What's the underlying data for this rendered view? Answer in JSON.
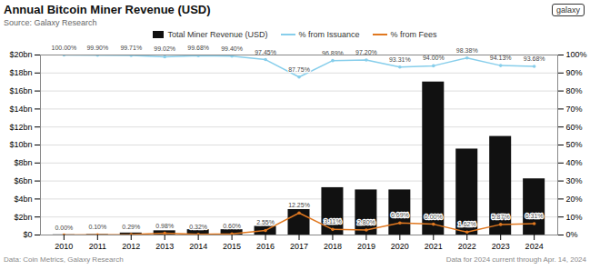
{
  "chart_data": {
    "type": "bar",
    "title": "Annual Bitcoin Miner Revenue (USD)",
    "subtitle": "Source: Galaxy Research",
    "annotations": [
      "Data: Coin Metrics, Galaxy Research",
      "Data for 2024 current through Apr. 14, 2024",
      "galaxy"
    ],
    "x": [
      2010,
      2011,
      2012,
      2013,
      2014,
      2015,
      2016,
      2017,
      2018,
      2019,
      2020,
      2021,
      2022,
      2023,
      2024
    ],
    "xlim": [
      2009.3,
      2024.7
    ],
    "xticks": [
      2010,
      2011,
      2012,
      2013,
      2014,
      2015,
      2016,
      2017,
      2018,
      2019,
      2020,
      2021,
      2022,
      2023,
      2024
    ],
    "ylim": [
      0,
      20000000000
    ],
    "yticks": [
      {
        "value": 0,
        "label": "$0"
      },
      {
        "value": 2000000000,
        "label": "$2bn"
      },
      {
        "value": 4000000000,
        "label": "$4bn"
      },
      {
        "value": 6000000000,
        "label": "$6bn"
      },
      {
        "value": 8000000000,
        "label": "$8bn"
      },
      {
        "value": 10000000000,
        "label": "$10bn"
      },
      {
        "value": 12000000000,
        "label": "$12bn"
      },
      {
        "value": 14000000000,
        "label": "$14bn"
      },
      {
        "value": 16000000000,
        "label": "$16bn"
      },
      {
        "value": 18000000000,
        "label": "$18bn"
      },
      {
        "value": 20000000000,
        "label": "$20bn"
      }
    ],
    "y2lim": [
      0,
      100
    ],
    "y2ticks": [
      {
        "value": 0,
        "label": "0%"
      },
      {
        "value": 10,
        "label": "10%"
      },
      {
        "value": 20,
        "label": "20%"
      },
      {
        "value": 30,
        "label": "30%"
      },
      {
        "value": 40,
        "label": "40%"
      },
      {
        "value": 50,
        "label": "50%"
      },
      {
        "value": 60,
        "label": "60%"
      },
      {
        "value": 70,
        "label": "70%"
      },
      {
        "value": 80,
        "label": "80%"
      },
      {
        "value": 90,
        "label": "90%"
      },
      {
        "value": 100,
        "label": "100%"
      }
    ],
    "grid": true,
    "legend": "top",
    "data_labels": true,
    "series": [
      {
        "name": "Total Miner Revenue (USD)",
        "type": "bar",
        "color": "#111111",
        "values": [
          20000000,
          50000000,
          220000000,
          470000000,
          590000000,
          590000000,
          960000000,
          2830000000,
          5260000000,
          5010000000,
          5010000000,
          17000000000,
          9550000000,
          10950000000,
          6240000000
        ]
      },
      {
        "name": "% from Issuance",
        "type": "line",
        "axis": "y2",
        "color": "#87ceeb",
        "marker": "circle",
        "values": [
          100.0,
          99.9,
          99.71,
          99.02,
          99.68,
          99.4,
          97.45,
          87.75,
          96.89,
          97.2,
          93.31,
          94.0,
          98.38,
          94.13,
          93.68
        ],
        "value_labels": [
          "100.00%",
          "99.90%",
          "99.71%",
          "99.02%",
          "99.68%",
          "99.40%",
          "97.45%",
          "87.75%",
          "96.89%",
          "97.20%",
          "93.31%",
          "94.00%",
          "98.38%",
          "94.13%",
          "93.68%"
        ]
      },
      {
        "name": "% from Fees",
        "type": "line",
        "axis": "y2",
        "color": "#e07820",
        "marker": "circle",
        "values": [
          0.0,
          0.1,
          0.29,
          0.98,
          0.32,
          0.6,
          2.55,
          12.25,
          3.11,
          2.8,
          6.69,
          6.0,
          1.62,
          5.87,
          6.31
        ],
        "value_labels": [
          "0.00%",
          "0.10%",
          "0.29%",
          "0.98%",
          "0.32%",
          "0.60%",
          "2.55%",
          "12.25%",
          "3.11%",
          "2.80%",
          "6.69%",
          "6.00%",
          "1.62%",
          "5.87%",
          "6.31%"
        ]
      }
    ]
  }
}
